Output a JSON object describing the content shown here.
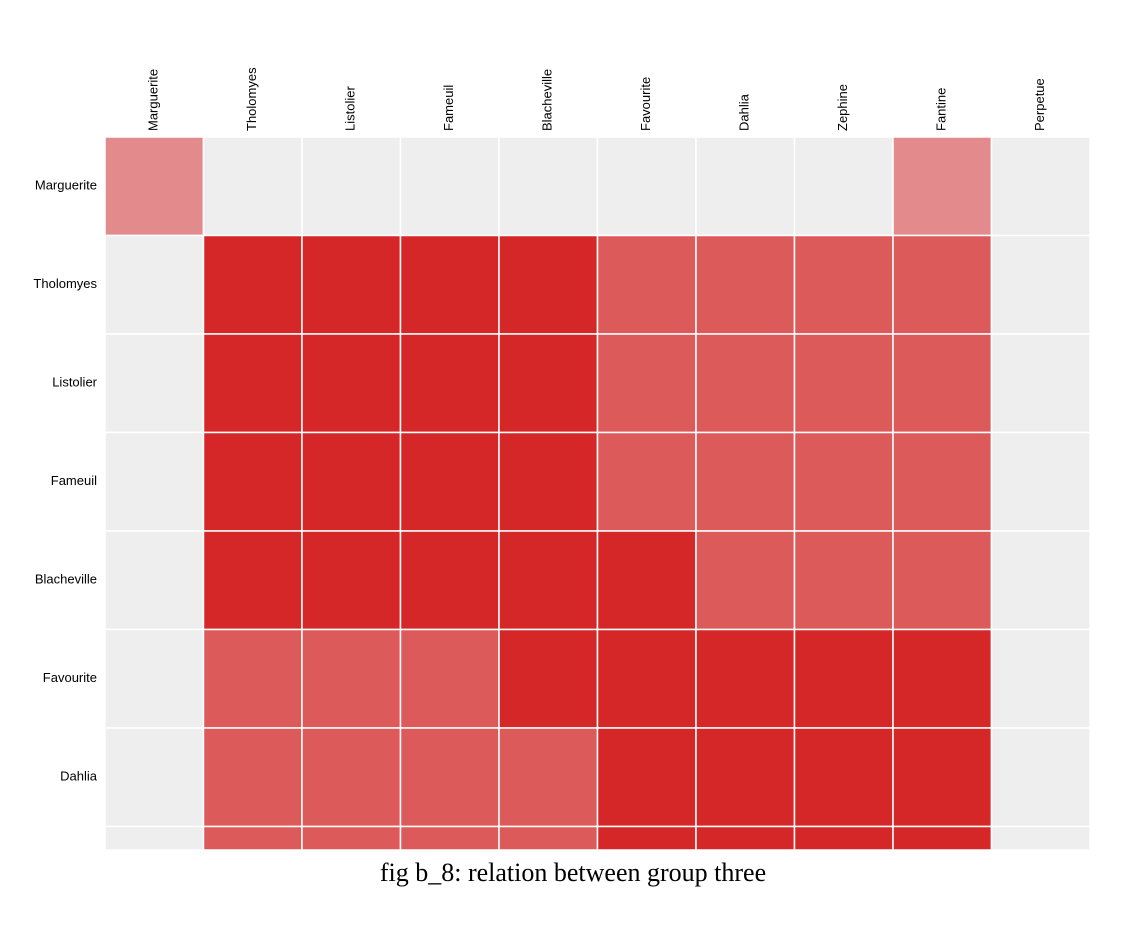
{
  "caption": "fig b_8: relation between group three",
  "chart_data": {
    "type": "heatmap",
    "column_labels": [
      "Marguerite",
      "Tholomyes",
      "Listolier",
      "Fameuil",
      "Blacheville",
      "Favourite",
      "Dahlia",
      "Zephine",
      "Fantine",
      "Perpetue"
    ],
    "row_labels": [
      "Marguerite",
      "Tholomyes",
      "Listolier",
      "Fameuil",
      "Blacheville",
      "Favourite",
      "Dahlia",
      ""
    ],
    "values": [
      [
        1,
        0,
        0,
        0,
        0,
        0,
        0,
        0,
        1,
        0
      ],
      [
        0,
        3,
        3,
        3,
        3,
        2,
        2,
        2,
        2,
        0
      ],
      [
        0,
        3,
        3,
        3,
        3,
        2,
        2,
        2,
        2,
        0
      ],
      [
        0,
        3,
        3,
        3,
        3,
        2,
        2,
        2,
        2,
        0
      ],
      [
        0,
        3,
        3,
        3,
        3,
        3,
        2,
        2,
        2,
        0
      ],
      [
        0,
        2,
        2,
        2,
        3,
        3,
        3,
        3,
        3,
        0
      ],
      [
        0,
        2,
        2,
        2,
        2,
        3,
        3,
        3,
        3,
        0
      ],
      [
        0,
        2,
        2,
        2,
        2,
        3,
        3,
        3,
        3,
        0
      ]
    ],
    "color_scale": {
      "0": "#eeeeee",
      "1": "#e38a8c",
      "2": "#dc5a5a",
      "3": "#d62728"
    },
    "grid_lines": true,
    "legend": false
  }
}
